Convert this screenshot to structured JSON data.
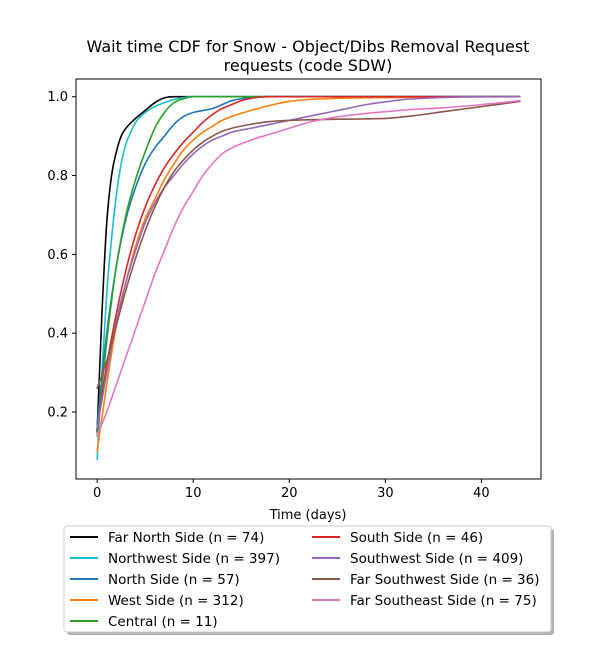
{
  "chart_data": {
    "type": "line",
    "title_lines": [
      "Wait time CDF for Snow - Object/Dibs Removal Request",
      "requests (code SDW)"
    ],
    "xlabel": "Time (days)",
    "ylabel": "",
    "xlim": [
      -2.2,
      46.2
    ],
    "ylim": [
      0.03,
      1.045
    ],
    "xticks": [
      0,
      10,
      20,
      30,
      40
    ],
    "yticks": [
      0.2,
      0.4,
      0.6,
      0.8,
      1.0
    ],
    "ytick_labels": [
      "0.2",
      "0.4",
      "0.6",
      "0.8",
      "1.0"
    ],
    "legend_position": "below plot, two columns",
    "series": [
      {
        "name": "Far North Side (n = 74)",
        "color": "#000000",
        "x": [
          0,
          0.5,
          1,
          1.5,
          2,
          2.5,
          3,
          4,
          5,
          6,
          7,
          8,
          10,
          44
        ],
        "y": [
          0.15,
          0.45,
          0.68,
          0.8,
          0.86,
          0.9,
          0.92,
          0.945,
          0.965,
          0.985,
          0.997,
          1.0,
          1.0,
          1.0
        ]
      },
      {
        "name": "Northwest Side (n = 397)",
        "color": "#17becf",
        "x": [
          0,
          0.5,
          1,
          1.5,
          2,
          2.5,
          3,
          3.5,
          4,
          5,
          6,
          7,
          8,
          10,
          44
        ],
        "y": [
          0.08,
          0.3,
          0.5,
          0.64,
          0.75,
          0.83,
          0.88,
          0.91,
          0.935,
          0.96,
          0.975,
          0.985,
          0.993,
          1.0,
          1.0
        ]
      },
      {
        "name": "North Side (n = 57)",
        "color": "#1f77b4",
        "x": [
          0,
          1,
          2,
          3,
          4,
          5,
          6,
          7,
          8,
          9,
          10,
          11,
          12,
          13,
          14,
          16,
          18,
          44
        ],
        "y": [
          0.17,
          0.4,
          0.57,
          0.69,
          0.77,
          0.83,
          0.87,
          0.9,
          0.93,
          0.95,
          0.96,
          0.965,
          0.97,
          0.98,
          0.99,
          0.998,
          1.0,
          1.0
        ]
      },
      {
        "name": "West Side (n = 312)",
        "color": "#ff7f0e",
        "x": [
          0,
          1,
          2,
          3,
          4,
          5,
          6,
          7,
          8,
          9,
          10,
          11,
          12,
          13,
          14,
          16,
          18,
          20,
          22,
          25,
          30,
          44
        ],
        "y": [
          0.1,
          0.27,
          0.42,
          0.53,
          0.62,
          0.69,
          0.74,
          0.79,
          0.83,
          0.865,
          0.89,
          0.91,
          0.925,
          0.94,
          0.95,
          0.965,
          0.978,
          0.988,
          0.993,
          0.996,
          0.998,
          1.0
        ]
      },
      {
        "name": "Central (n = 11)",
        "color": "#2ca02c",
        "x": [
          0,
          1,
          2,
          3,
          4,
          5,
          6,
          7,
          8,
          9,
          10,
          12,
          44
        ],
        "y": [
          0.14,
          0.38,
          0.57,
          0.7,
          0.79,
          0.86,
          0.92,
          0.96,
          0.985,
          0.995,
          1.0,
          1.0,
          1.0
        ]
      },
      {
        "name": "South Side (n = 46)",
        "color": "#d62728",
        "x": [
          0,
          1,
          2,
          3,
          4,
          5,
          6,
          7,
          8,
          9,
          10,
          11,
          12,
          13,
          14,
          15,
          16,
          17,
          18,
          20,
          44
        ],
        "y": [
          0.16,
          0.32,
          0.45,
          0.56,
          0.65,
          0.72,
          0.775,
          0.82,
          0.855,
          0.885,
          0.91,
          0.935,
          0.955,
          0.97,
          0.98,
          0.99,
          0.996,
          0.999,
          1.0,
          1.0,
          1.0
        ]
      },
      {
        "name": "Southwest Side (n = 409)",
        "color": "#9467bd",
        "x": [
          0,
          1,
          2,
          3,
          4,
          5,
          6,
          7,
          8,
          9,
          10,
          11,
          12,
          13,
          14,
          16,
          18,
          20,
          22,
          24,
          26,
          28,
          30,
          32,
          35,
          40,
          44
        ],
        "y": [
          0.16,
          0.3,
          0.43,
          0.53,
          0.61,
          0.68,
          0.73,
          0.77,
          0.8,
          0.83,
          0.855,
          0.875,
          0.89,
          0.9,
          0.91,
          0.92,
          0.93,
          0.94,
          0.95,
          0.96,
          0.97,
          0.98,
          0.987,
          0.993,
          0.997,
          1.0,
          1.0
        ]
      },
      {
        "name": "Far Southwest Side (n = 36)",
        "color": "#8c564b",
        "x": [
          0,
          1,
          2,
          3,
          4,
          5,
          6,
          7,
          8,
          9,
          10,
          11,
          12,
          13,
          14,
          16,
          18,
          20,
          25,
          30,
          33,
          36,
          40,
          44
        ],
        "y": [
          0.26,
          0.33,
          0.42,
          0.51,
          0.59,
          0.66,
          0.72,
          0.77,
          0.81,
          0.84,
          0.865,
          0.885,
          0.9,
          0.912,
          0.92,
          0.93,
          0.937,
          0.94,
          0.943,
          0.945,
          0.952,
          0.962,
          0.975,
          0.988
        ]
      },
      {
        "name": "Far Southeast Side (n = 75)",
        "color": "#e377c2",
        "x": [
          0,
          1,
          2,
          3,
          4,
          5,
          6,
          7,
          8,
          9,
          10,
          11,
          12,
          13,
          14,
          16,
          18,
          20,
          22,
          24,
          27,
          30,
          33,
          36,
          40,
          44
        ],
        "y": [
          0.14,
          0.2,
          0.27,
          0.34,
          0.41,
          0.48,
          0.55,
          0.61,
          0.67,
          0.72,
          0.76,
          0.8,
          0.83,
          0.855,
          0.87,
          0.89,
          0.905,
          0.92,
          0.935,
          0.945,
          0.955,
          0.962,
          0.968,
          0.972,
          0.98,
          0.99
        ]
      }
    ]
  }
}
